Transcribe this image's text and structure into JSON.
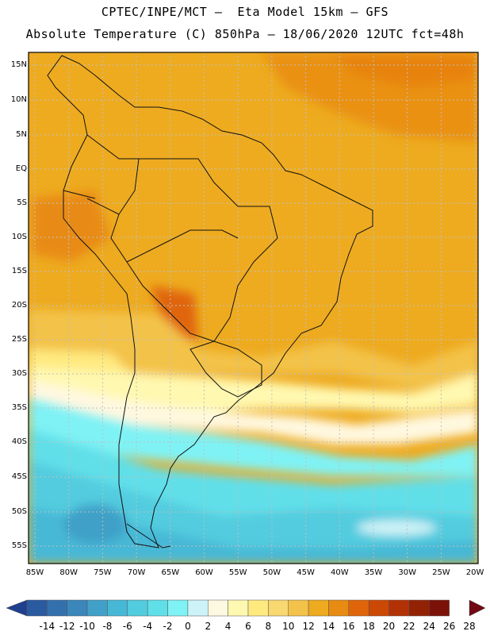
{
  "header": {
    "line1": "CPTEC/INPE/MCT —  Eta Model 15km — GFS",
    "line2": "Absolute Temperature (C) 850hPa — 18/06/2020 12UTC fct=48h"
  },
  "axes": {
    "lat_labels": [
      "15N",
      "10N",
      "5N",
      "EQ",
      "5S",
      "10S",
      "15S",
      "20S",
      "25S",
      "30S",
      "35S",
      "40S",
      "45S",
      "50S",
      "55S"
    ],
    "lon_labels": [
      "85W",
      "80W",
      "75W",
      "70W",
      "65W",
      "60W",
      "55W",
      "50W",
      "45W",
      "40W",
      "35W",
      "30W",
      "25W",
      "20W"
    ]
  },
  "colorbar": {
    "labels": [
      "-14",
      "-12",
      "-10",
      "-8",
      "-6",
      "-4",
      "-2",
      "0",
      "2",
      "4",
      "6",
      "8",
      "10",
      "12",
      "14",
      "16",
      "18",
      "20",
      "22",
      "24",
      "26",
      "28"
    ],
    "colors": [
      "#1f3f8f",
      "#2a5aa0",
      "#3470ae",
      "#3b86ba",
      "#41a0c8",
      "#46b8d6",
      "#52ccdf",
      "#60dfe9",
      "#7ff2f5",
      "#cdf2f7",
      "#fff8e0",
      "#fff8b0",
      "#ffea80",
      "#f8d870",
      "#f3c24a",
      "#eeab20",
      "#e88b12",
      "#e0650a",
      "#cc4805",
      "#b23205",
      "#932205",
      "#7b1208",
      "#700a12"
    ]
  },
  "map_colors": {
    "border": "#111111",
    "gridline": "#bfbfbf"
  }
}
